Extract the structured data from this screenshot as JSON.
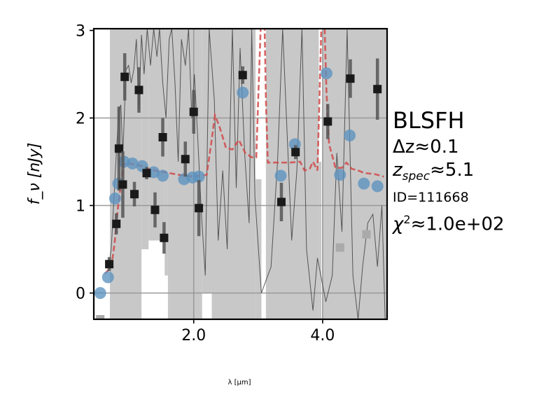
{
  "chart_data": {
    "type": "scatter",
    "xlabel": "λ [μm]",
    "ylabel": "f_ν [nJy]",
    "xlim": [
      0.45,
      5.0
    ],
    "ylim": [
      -0.3,
      3.02
    ],
    "x_ticks": [
      2.0,
      4.0
    ],
    "x_tick_labels": [
      "2.0",
      "4.0"
    ],
    "y_ticks": [
      0,
      1,
      2,
      3
    ],
    "y_tick_labels": [
      "0",
      "1",
      "2",
      "3"
    ],
    "grid": true,
    "grid_lines_y": [
      0,
      1,
      2
    ],
    "grid_lines_x": [
      2.0,
      4.0
    ],
    "annotations": {
      "name": "BLSFH",
      "dz_prefix": "Δz≈",
      "dz_value": "0.1",
      "zspec_z": "z",
      "zspec_sub": "spec",
      "zspec_value": "≈5.1",
      "id": "ID=111668",
      "chi2_prefix": "χ",
      "chi2_sup": "2",
      "chi2_value": "≈1.0e+02"
    },
    "colors": {
      "model_points": "#5b92bf",
      "observed_points": "#1a1a1a",
      "model_line": "#d04a4a",
      "uncertainty_band": "#c8c8c8",
      "spectrum": "#404040",
      "excluded_points": "#aaaaaa",
      "grid": "#9a9a9a"
    },
    "series": [
      {
        "kind": "model_photometry",
        "points": [
          [
            0.55,
            0.0
          ],
          [
            0.67,
            0.18
          ],
          [
            0.78,
            1.08
          ],
          [
            0.83,
            1.25
          ],
          [
            0.92,
            1.5
          ],
          [
            1.05,
            1.48
          ],
          [
            1.2,
            1.45
          ],
          [
            1.38,
            1.38
          ],
          [
            1.52,
            1.34
          ],
          [
            1.85,
            1.3
          ],
          [
            1.98,
            1.32
          ],
          [
            2.08,
            1.33
          ],
          [
            2.76,
            2.29
          ],
          [
            3.35,
            1.34
          ],
          [
            3.57,
            1.7
          ],
          [
            4.06,
            2.51
          ],
          [
            4.27,
            1.35
          ],
          [
            4.42,
            1.8
          ],
          [
            4.64,
            1.25
          ],
          [
            4.85,
            1.22
          ]
        ]
      },
      {
        "kind": "observed_photometry",
        "points": [
          {
            "x": 0.69,
            "y": 0.33,
            "err": 0.08
          },
          {
            "x": 0.8,
            "y": 0.79,
            "err": 0.12
          },
          {
            "x": 0.84,
            "y": 1.65,
            "err": 0.48
          },
          {
            "x": 0.9,
            "y": 1.24,
            "err": 0.38
          },
          {
            "x": 0.93,
            "y": 2.47,
            "err": 0.27
          },
          {
            "x": 1.08,
            "y": 1.13,
            "err": 0.14
          },
          {
            "x": 1.15,
            "y": 2.32,
            "err": 0.26
          },
          {
            "x": 1.27,
            "y": 1.37,
            "err": 0.07
          },
          {
            "x": 1.4,
            "y": 0.95,
            "err": 0.2
          },
          {
            "x": 1.52,
            "y": 1.78,
            "err": 0.22
          },
          {
            "x": 1.54,
            "y": 0.63,
            "err": 0.18
          },
          {
            "x": 1.87,
            "y": 1.53,
            "err": 0.2
          },
          {
            "x": 2.0,
            "y": 2.07,
            "err": 0.25
          },
          {
            "x": 2.08,
            "y": 0.97,
            "err": 0.32
          },
          {
            "x": 2.76,
            "y": 2.49,
            "err": 0.1
          },
          {
            "x": 3.36,
            "y": 1.04,
            "err": 0.22
          },
          {
            "x": 3.58,
            "y": 1.61,
            "err": 0.08
          },
          {
            "x": 4.08,
            "y": 1.96,
            "err": 0.2
          },
          {
            "x": 4.43,
            "y": 2.45,
            "err": 0.22
          },
          {
            "x": 4.85,
            "y": 2.33,
            "err": 0.35
          }
        ]
      },
      {
        "kind": "excluded_photometry",
        "points": [
          [
            0.55,
            -0.3
          ],
          [
            4.27,
            0.52
          ],
          [
            4.68,
            0.67
          ]
        ]
      },
      {
        "kind": "model_spectrum",
        "points": [
          [
            0.62,
            0.22
          ],
          [
            0.72,
            0.3
          ],
          [
            0.77,
            0.55
          ],
          [
            0.82,
            0.95
          ],
          [
            0.88,
            1.3
          ],
          [
            0.92,
            1.47
          ],
          [
            1.0,
            1.48
          ],
          [
            1.15,
            1.46
          ],
          [
            1.3,
            1.42
          ],
          [
            1.45,
            1.39
          ],
          [
            1.55,
            1.38
          ],
          [
            1.7,
            1.36
          ],
          [
            1.85,
            1.34
          ],
          [
            2.0,
            1.33
          ],
          [
            2.2,
            1.35
          ],
          [
            2.27,
            1.7
          ],
          [
            2.33,
            2.03
          ],
          [
            2.4,
            1.9
          ],
          [
            2.5,
            1.66
          ],
          [
            2.6,
            1.64
          ],
          [
            2.7,
            1.75
          ],
          [
            2.8,
            1.6
          ],
          [
            2.9,
            1.55
          ],
          [
            2.97,
            1.55
          ],
          [
            3.0,
            2.2
          ],
          [
            3.04,
            3.05
          ],
          [
            3.1,
            3.05
          ],
          [
            3.12,
            2.2
          ],
          [
            3.15,
            1.49
          ],
          [
            3.3,
            1.49
          ],
          [
            3.5,
            1.49
          ],
          [
            3.65,
            1.5
          ],
          [
            3.72,
            1.4
          ],
          [
            3.8,
            1.42
          ],
          [
            3.85,
            1.5
          ],
          [
            3.92,
            1.4
          ],
          [
            3.95,
            2.2
          ],
          [
            3.98,
            3.05
          ],
          [
            4.03,
            3.05
          ],
          [
            4.06,
            2.3
          ],
          [
            4.1,
            1.7
          ],
          [
            4.2,
            1.43
          ],
          [
            4.3,
            1.43
          ],
          [
            4.37,
            1.49
          ],
          [
            4.45,
            1.42
          ],
          [
            4.55,
            1.4
          ],
          [
            4.65,
            1.37
          ],
          [
            4.8,
            1.36
          ],
          [
            4.95,
            1.33
          ]
        ]
      },
      {
        "kind": "observed_spectrum",
        "points": [
          [
            0.68,
            0.3
          ],
          [
            0.72,
            0.5
          ],
          [
            0.75,
            0.9
          ],
          [
            0.8,
            1.6
          ],
          [
            0.84,
            2.1
          ],
          [
            0.87,
            2.15
          ],
          [
            0.9,
            1.55
          ],
          [
            0.95,
            2.55
          ],
          [
            0.99,
            2.6
          ],
          [
            1.03,
            2.4
          ],
          [
            1.07,
            2.55
          ],
          [
            1.11,
            2.9
          ],
          [
            1.15,
            2.1
          ],
          [
            1.19,
            2.95
          ],
          [
            1.23,
            2.5
          ],
          [
            1.28,
            3.02
          ],
          [
            1.33,
            2.6
          ],
          [
            1.38,
            3.02
          ],
          [
            1.43,
            2.7
          ],
          [
            1.47,
            3.02
          ],
          [
            1.52,
            2.4
          ],
          [
            1.57,
            2.0
          ],
          [
            1.62,
            2.9
          ],
          [
            1.66,
            3.02
          ],
          [
            1.71,
            2.4
          ],
          [
            1.76,
            1.5
          ],
          [
            1.81,
            2.9
          ],
          [
            1.87,
            2.6
          ],
          [
            1.92,
            3.02
          ],
          [
            1.97,
            2.0
          ],
          [
            2.01,
            2.5
          ],
          [
            2.06,
            1.8
          ],
          [
            2.12,
            0.9
          ],
          [
            2.18,
            0.2
          ],
          [
            2.24,
            3.02
          ],
          [
            2.32,
            2.2
          ],
          [
            2.38,
            0.6
          ],
          [
            2.45,
            1.4
          ],
          [
            2.52,
            0.5
          ],
          [
            2.6,
            3.02
          ],
          [
            2.66,
            1.2
          ],
          [
            2.72,
            2.8
          ],
          [
            2.79,
            1.6
          ],
          [
            2.86,
            0.8
          ],
          [
            2.9,
            3.02
          ],
          [
            2.95,
            1.1
          ],
          [
            3.05,
            0.0
          ],
          [
            3.2,
            0.3
          ],
          [
            3.3,
            1.5
          ],
          [
            3.38,
            3.02
          ],
          [
            3.45,
            1.8
          ],
          [
            3.52,
            0.6
          ],
          [
            3.6,
            1.4
          ],
          [
            3.68,
            3.02
          ],
          [
            3.75,
            0.5
          ],
          [
            3.85,
            -0.2
          ],
          [
            3.92,
            0.4
          ],
          [
            4.05,
            -0.1
          ],
          [
            4.15,
            0.2
          ],
          [
            4.22,
            1.6
          ],
          [
            4.3,
            0.7
          ],
          [
            4.38,
            3.02
          ],
          [
            4.47,
            0.2
          ],
          [
            4.55,
            -0.3
          ],
          [
            4.62,
            0.3
          ],
          [
            4.7,
            0.8
          ],
          [
            4.78,
            0.9
          ],
          [
            4.85,
            0.3
          ],
          [
            4.92,
            1.0
          ],
          [
            4.97,
            -0.3
          ]
        ]
      },
      {
        "kind": "uncertainty_band",
        "regions": [
          {
            "x0": 0.7,
            "x1": 1.19,
            "lower": "bottom",
            "upper": "top"
          },
          {
            "x0": 1.19,
            "x1": 1.3,
            "lower": 0.5,
            "upper": "top"
          },
          {
            "x0": 1.3,
            "x1": 1.55,
            "lower": 0.6,
            "upper": "top"
          },
          {
            "x0": 1.55,
            "x1": 1.6,
            "lower": 0.2,
            "upper": "top"
          },
          {
            "x0": 1.6,
            "x1": 2.13,
            "lower": "bottom",
            "upper": "top"
          },
          {
            "x0": 2.13,
            "x1": 2.28,
            "lower": 0.0,
            "upper": "top"
          },
          {
            "x0": 2.28,
            "x1": 2.96,
            "lower": "bottom",
            "upper": "top"
          },
          {
            "x0": 2.96,
            "x1": 3.05,
            "lower": "bottom",
            "upper": 1.3
          },
          {
            "x0": 3.12,
            "x1": 3.94,
            "lower": "bottom",
            "upper": "top"
          },
          {
            "x0": 3.94,
            "x1": 3.98,
            "lower": "bottom",
            "upper": 1.5
          },
          {
            "x0": 4.0,
            "x1": 5.0,
            "lower": "bottom",
            "upper": "top"
          }
        ]
      }
    ]
  }
}
